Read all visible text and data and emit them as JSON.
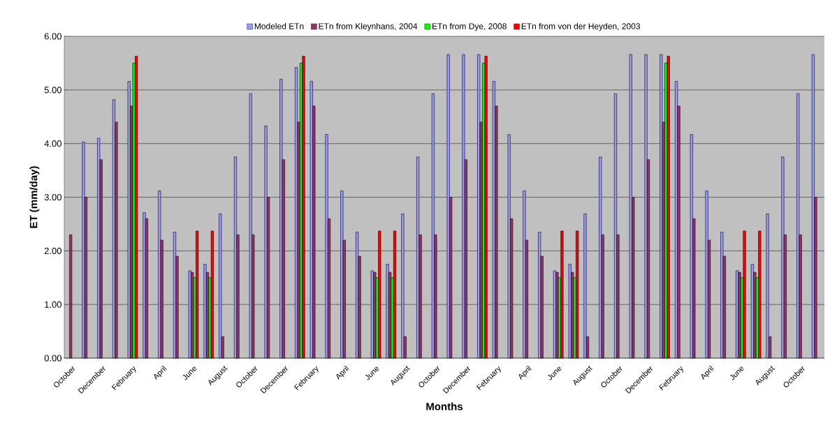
{
  "chart_data": {
    "type": "bar",
    "xlabel": "Months",
    "ylabel": "ET (mm/day)",
    "categories": [
      "October",
      null,
      "December",
      null,
      "February",
      null,
      "April",
      null,
      "June",
      null,
      "August",
      null,
      "October",
      null,
      "December",
      null,
      "February",
      null,
      "April",
      null,
      "June",
      null,
      "August",
      null,
      "October",
      null,
      "December",
      null,
      "February",
      null,
      "April",
      null,
      "June",
      null,
      "August",
      null,
      "October",
      null,
      "December",
      null,
      "February",
      null,
      "April",
      null,
      "June",
      null,
      "August",
      null,
      "October",
      null
    ],
    "series": [
      {
        "name": "Modeled ETn",
        "color": "#9999ff",
        "values": [
          null,
          4.03,
          4.1,
          4.82,
          5.16,
          2.71,
          3.12,
          2.35,
          1.63,
          1.75,
          2.69,
          3.75,
          4.93,
          4.33,
          5.2,
          5.42,
          5.16,
          4.17,
          3.12,
          2.35,
          1.63,
          1.75,
          2.69,
          3.75,
          4.93,
          5.66,
          5.66,
          5.66,
          5.16,
          4.17,
          3.12,
          2.35,
          1.63,
          1.75,
          2.69,
          3.75,
          4.93,
          5.66,
          5.66,
          5.66,
          5.16,
          4.17,
          3.12,
          2.35,
          1.63,
          1.75,
          2.69,
          3.75,
          4.93,
          5.66
        ]
      },
      {
        "name": "ETn from Kleynhans, 2004",
        "color": "#993366",
        "values": [
          2.3,
          3.0,
          3.7,
          4.4,
          4.7,
          2.6,
          2.2,
          1.9,
          1.6,
          1.6,
          0.4,
          2.3,
          2.3,
          3.0,
          3.7,
          4.4,
          4.7,
          2.6,
          2.2,
          1.9,
          1.6,
          1.6,
          0.4,
          2.3,
          2.3,
          3.0,
          3.7,
          4.4,
          4.7,
          2.6,
          2.2,
          1.9,
          1.6,
          1.6,
          0.4,
          2.3,
          2.3,
          3.0,
          3.7,
          4.4,
          4.7,
          2.6,
          2.2,
          1.9,
          1.6,
          1.6,
          0.4,
          2.3,
          2.3,
          3.0
        ]
      },
      {
        "name": "ETn from Dye, 2008",
        "color": "#00ff00",
        "values": [
          null,
          null,
          null,
          null,
          5.5,
          null,
          null,
          null,
          1.5,
          1.5,
          null,
          null,
          null,
          null,
          null,
          5.5,
          null,
          null,
          null,
          null,
          1.5,
          1.5,
          null,
          null,
          null,
          null,
          null,
          5.5,
          null,
          null,
          null,
          null,
          1.5,
          1.5,
          null,
          null,
          null,
          null,
          null,
          5.5,
          null,
          null,
          null,
          null,
          1.5,
          1.5,
          null,
          null,
          null,
          null
        ]
      },
      {
        "name": "ETn from von der Heyden, 2003",
        "color": "#ff0000",
        "values": [
          null,
          null,
          null,
          null,
          5.63,
          null,
          null,
          null,
          2.37,
          2.37,
          null,
          null,
          null,
          null,
          null,
          5.63,
          null,
          null,
          null,
          null,
          2.37,
          2.37,
          null,
          null,
          null,
          null,
          null,
          5.63,
          null,
          null,
          null,
          null,
          2.37,
          2.37,
          null,
          null,
          null,
          null,
          null,
          5.63,
          null,
          null,
          null,
          null,
          2.37,
          2.37,
          null,
          null,
          null,
          null
        ]
      }
    ],
    "ylim": [
      0,
      6
    ],
    "yticks": [
      {
        "value": 0,
        "label": "0.00"
      },
      {
        "value": 1,
        "label": "1.00"
      },
      {
        "value": 2,
        "label": "2.00"
      },
      {
        "value": 3,
        "label": "3.00"
      },
      {
        "value": 4,
        "label": "4.00"
      },
      {
        "value": 5,
        "label": "5.00"
      },
      {
        "value": 6,
        "label": "6.00"
      }
    ],
    "grid": "y",
    "legend": "top"
  }
}
